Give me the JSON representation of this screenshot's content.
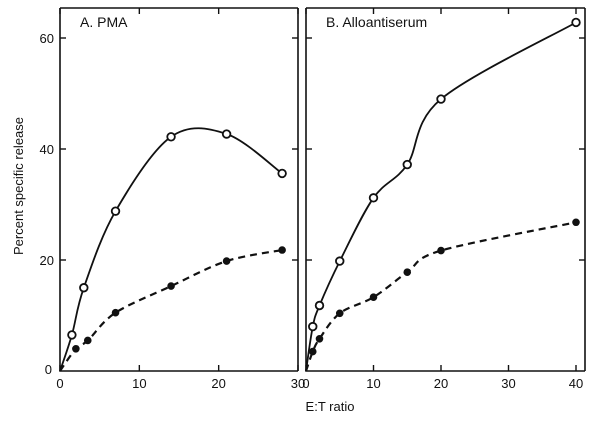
{
  "figure": {
    "ylabel": "Percent specific release",
    "xlabel": "E:T ratio"
  },
  "chart_data": [
    {
      "type": "scatter",
      "title": "A. PMA",
      "xlim": [
        0,
        30
      ],
      "ylim": [
        0,
        65
      ],
      "xticks": [
        0,
        10,
        20,
        30
      ],
      "yticks": [
        20,
        40,
        60
      ],
      "series": [
        {
          "style": "open-circle-solid",
          "points": [
            [
              1.5,
              6.5
            ],
            [
              3,
              15
            ],
            [
              7,
              28.8
            ],
            [
              14,
              42.2
            ],
            [
              21,
              42.7
            ],
            [
              28,
              35.6
            ]
          ]
        },
        {
          "style": "filled-circle-dashed",
          "points": [
            [
              2,
              4
            ],
            [
              3.5,
              5.5
            ],
            [
              7,
              10.5
            ],
            [
              14,
              15.3
            ],
            [
              21,
              19.8
            ],
            [
              28,
              21.8
            ]
          ]
        }
      ]
    },
    {
      "type": "scatter",
      "title": "B. Alloantiserum",
      "xlim": [
        0,
        42
      ],
      "ylim": [
        0,
        65
      ],
      "xticks": [
        0,
        10,
        20,
        30,
        40
      ],
      "yticks": [
        20,
        40,
        60
      ],
      "series": [
        {
          "style": "open-circle-solid",
          "points": [
            [
              1,
              8
            ],
            [
              2,
              11.8
            ],
            [
              5,
              19.8
            ],
            [
              10,
              31.2
            ],
            [
              15,
              37.2
            ],
            [
              20,
              49
            ],
            [
              40,
              62.8
            ]
          ]
        },
        {
          "style": "filled-circle-dashed",
          "points": [
            [
              1,
              3.5
            ],
            [
              2,
              5.8
            ],
            [
              5,
              10.4
            ],
            [
              10,
              13.3
            ],
            [
              15,
              17.8
            ],
            [
              20,
              21.7
            ],
            [
              40,
              26.8
            ]
          ]
        }
      ]
    }
  ]
}
